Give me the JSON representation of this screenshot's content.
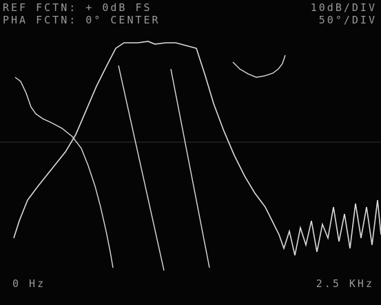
{
  "display": {
    "top_left": [
      "REF FCTN: + 0dB FS",
      "PHA FCTN: 0° CENTER"
    ],
    "top_right": [
      "10dB/DIV",
      "50°/DIV"
    ],
    "bottom_left": "0 Hz",
    "bottom_right": "2.5 KHz"
  }
}
